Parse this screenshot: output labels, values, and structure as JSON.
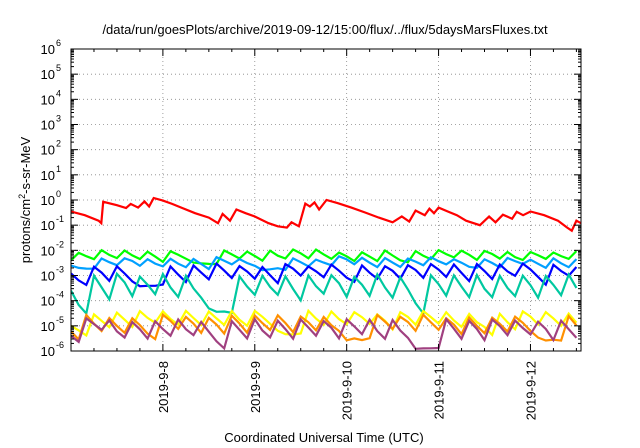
{
  "chart_data": {
    "type": "line",
    "title": "/data/run/goesPlots/archive/2019-09-12/15:00/flux/../flux/5daysMarsFluxes.txt",
    "xlabel": "Coordinated Universal Time (UTC)",
    "ylabel": {
      "pre": "protons/cm",
      "sup": "2",
      "post": "-s-sr-MeV"
    },
    "x_range_days": [
      0,
      5.55
    ],
    "x_tick_labels": [
      "2019-9-8",
      "2019-9-9",
      "2019-9-10",
      "2019-9-11",
      "2019-9-12"
    ],
    "x_tick_days": [
      1,
      2,
      3,
      4,
      5
    ],
    "y_scale": "log",
    "ylim": [
      1e-06,
      1000000.0
    ],
    "y_ticks": [
      {
        "base": "10",
        "exp": "-6"
      },
      {
        "base": "10",
        "exp": "-5"
      },
      {
        "base": "10",
        "exp": "-4"
      },
      {
        "base": "10",
        "exp": "-3"
      },
      {
        "base": "10",
        "exp": "-2"
      },
      {
        "base": "10",
        "exp": "-1"
      },
      {
        "base": "10",
        "exp": "0"
      },
      {
        "base": "10",
        "exp": "1"
      },
      {
        "base": "10",
        "exp": "2"
      },
      {
        "base": "10",
        "exp": "3"
      },
      {
        "base": "10",
        "exp": "4"
      },
      {
        "base": "10",
        "exp": "5"
      },
      {
        "base": "10",
        "exp": "6"
      }
    ],
    "grid": true,
    "series": [
      {
        "color": "#ff0000",
        "points": [
          [
            0.0,
            0.35
          ],
          [
            0.15,
            0.25
          ],
          [
            0.3,
            0.15
          ],
          [
            0.33,
            0.12
          ],
          [
            0.35,
            0.85
          ],
          [
            0.5,
            0.62
          ],
          [
            0.6,
            0.48
          ],
          [
            0.65,
            0.7
          ],
          [
            0.73,
            0.5
          ],
          [
            0.8,
            0.88
          ],
          [
            0.85,
            0.55
          ],
          [
            0.9,
            1.2
          ],
          [
            1.0,
            0.95
          ],
          [
            1.1,
            0.7
          ],
          [
            1.2,
            0.5
          ],
          [
            1.35,
            0.3
          ],
          [
            1.5,
            0.2
          ],
          [
            1.6,
            0.12
          ],
          [
            1.65,
            0.28
          ],
          [
            1.73,
            0.15
          ],
          [
            1.8,
            0.42
          ],
          [
            1.9,
            0.3
          ],
          [
            2.0,
            0.22
          ],
          [
            2.15,
            0.12
          ],
          [
            2.25,
            0.09
          ],
          [
            2.35,
            0.08
          ],
          [
            2.4,
            0.13
          ],
          [
            2.48,
            0.09
          ],
          [
            2.55,
            0.72
          ],
          [
            2.6,
            0.55
          ],
          [
            2.65,
            0.8
          ],
          [
            2.7,
            0.42
          ],
          [
            2.78,
            1.0
          ],
          [
            2.9,
            0.75
          ],
          [
            3.05,
            0.5
          ],
          [
            3.2,
            0.32
          ],
          [
            3.35,
            0.2
          ],
          [
            3.5,
            0.13
          ],
          [
            3.6,
            0.22
          ],
          [
            3.68,
            0.14
          ],
          [
            3.75,
            0.38
          ],
          [
            3.85,
            0.25
          ],
          [
            3.9,
            0.45
          ],
          [
            3.95,
            0.3
          ],
          [
            4.0,
            0.5
          ],
          [
            4.1,
            0.35
          ],
          [
            4.2,
            0.25
          ],
          [
            4.3,
            0.15
          ],
          [
            4.45,
            0.1
          ],
          [
            4.55,
            0.22
          ],
          [
            4.62,
            0.13
          ],
          [
            4.7,
            0.26
          ],
          [
            4.8,
            0.18
          ],
          [
            4.85,
            0.34
          ],
          [
            4.92,
            0.25
          ],
          [
            5.0,
            0.35
          ],
          [
            5.15,
            0.25
          ],
          [
            5.3,
            0.15
          ],
          [
            5.4,
            0.08
          ],
          [
            5.45,
            0.06
          ],
          [
            5.5,
            0.15
          ],
          [
            5.55,
            0.12
          ]
        ]
      },
      {
        "color": "#00ff00",
        "kind": "saw",
        "seed": 11,
        "start": 0.004,
        "peak": 0.011,
        "low": 0.0028,
        "shift": 0.05
      },
      {
        "color": "#00a0ff",
        "kind": "saw",
        "seed": 23,
        "start": 0.0025,
        "peak": 0.006,
        "low": 0.0016,
        "shift": 0.08
      },
      {
        "color": "#0000ff",
        "kind": "saw",
        "seed": 37,
        "start": 0.0012,
        "peak": 0.003,
        "low": 0.00035,
        "shift": 0.11
      },
      {
        "color": "#00c8a0",
        "kind": "saw",
        "seed": 41,
        "start": 0.00025,
        "peak": 0.0012,
        "low": 3e-05,
        "shift": 0.14
      },
      {
        "color": "#ffff00",
        "kind": "saw",
        "seed": 53,
        "start": 1e-05,
        "peak": 4e-05,
        "low": 4e-06,
        "shift": 0.17
      },
      {
        "color": "#ff9000",
        "kind": "saw",
        "seed": 61,
        "start": 6e-06,
        "peak": 2.8e-05,
        "low": 2.5e-06,
        "shift": 0.2
      },
      {
        "color": "#a04080",
        "kind": "saw",
        "seed": 71,
        "start": 4e-06,
        "peak": 2e-05,
        "low": 1.1e-06,
        "shift": 0.23
      }
    ]
  }
}
